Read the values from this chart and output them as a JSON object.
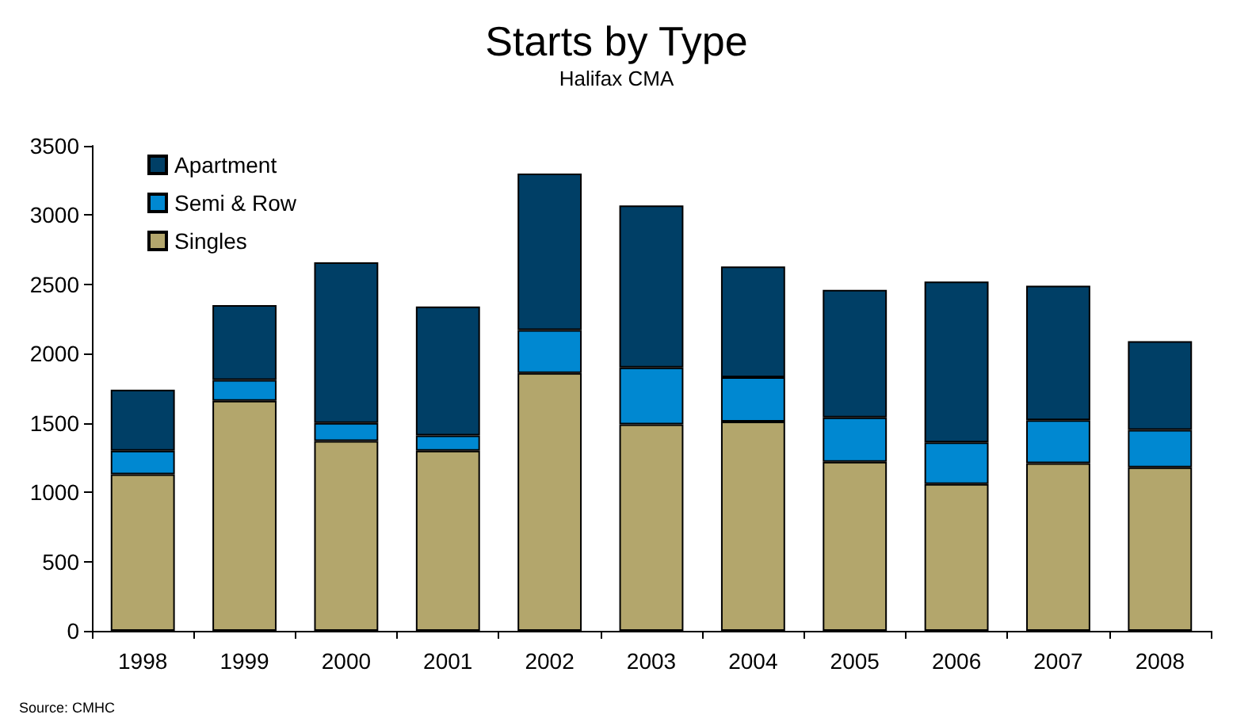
{
  "chart_data": {
    "type": "bar",
    "title": "Starts by Type",
    "subtitle": "Halifax CMA",
    "categories": [
      "1998",
      "1999",
      "2000",
      "2001",
      "2002",
      "2003",
      "2004",
      "2005",
      "2006",
      "2007",
      "2008"
    ],
    "series": [
      {
        "name": "Singles",
        "color": "#b3a66c",
        "values": [
          1130,
          1660,
          1370,
          1300,
          1860,
          1490,
          1510,
          1220,
          1060,
          1210,
          1180
        ]
      },
      {
        "name": "Semi & Row",
        "color": "#0088d1",
        "values": [
          170,
          150,
          130,
          110,
          310,
          410,
          320,
          320,
          300,
          310,
          270
        ]
      },
      {
        "name": "Apartment",
        "color": "#003f66",
        "values": [
          440,
          540,
          1160,
          930,
          1130,
          1170,
          800,
          920,
          1160,
          970,
          640
        ]
      }
    ],
    "stacked": true,
    "ylim": [
      0,
      3500
    ],
    "yticks": [
      0,
      500,
      1000,
      1500,
      2000,
      2500,
      3000,
      3500
    ],
    "grid": false,
    "legend": "top left",
    "annotations": [
      "Source: CMHC"
    ]
  }
}
